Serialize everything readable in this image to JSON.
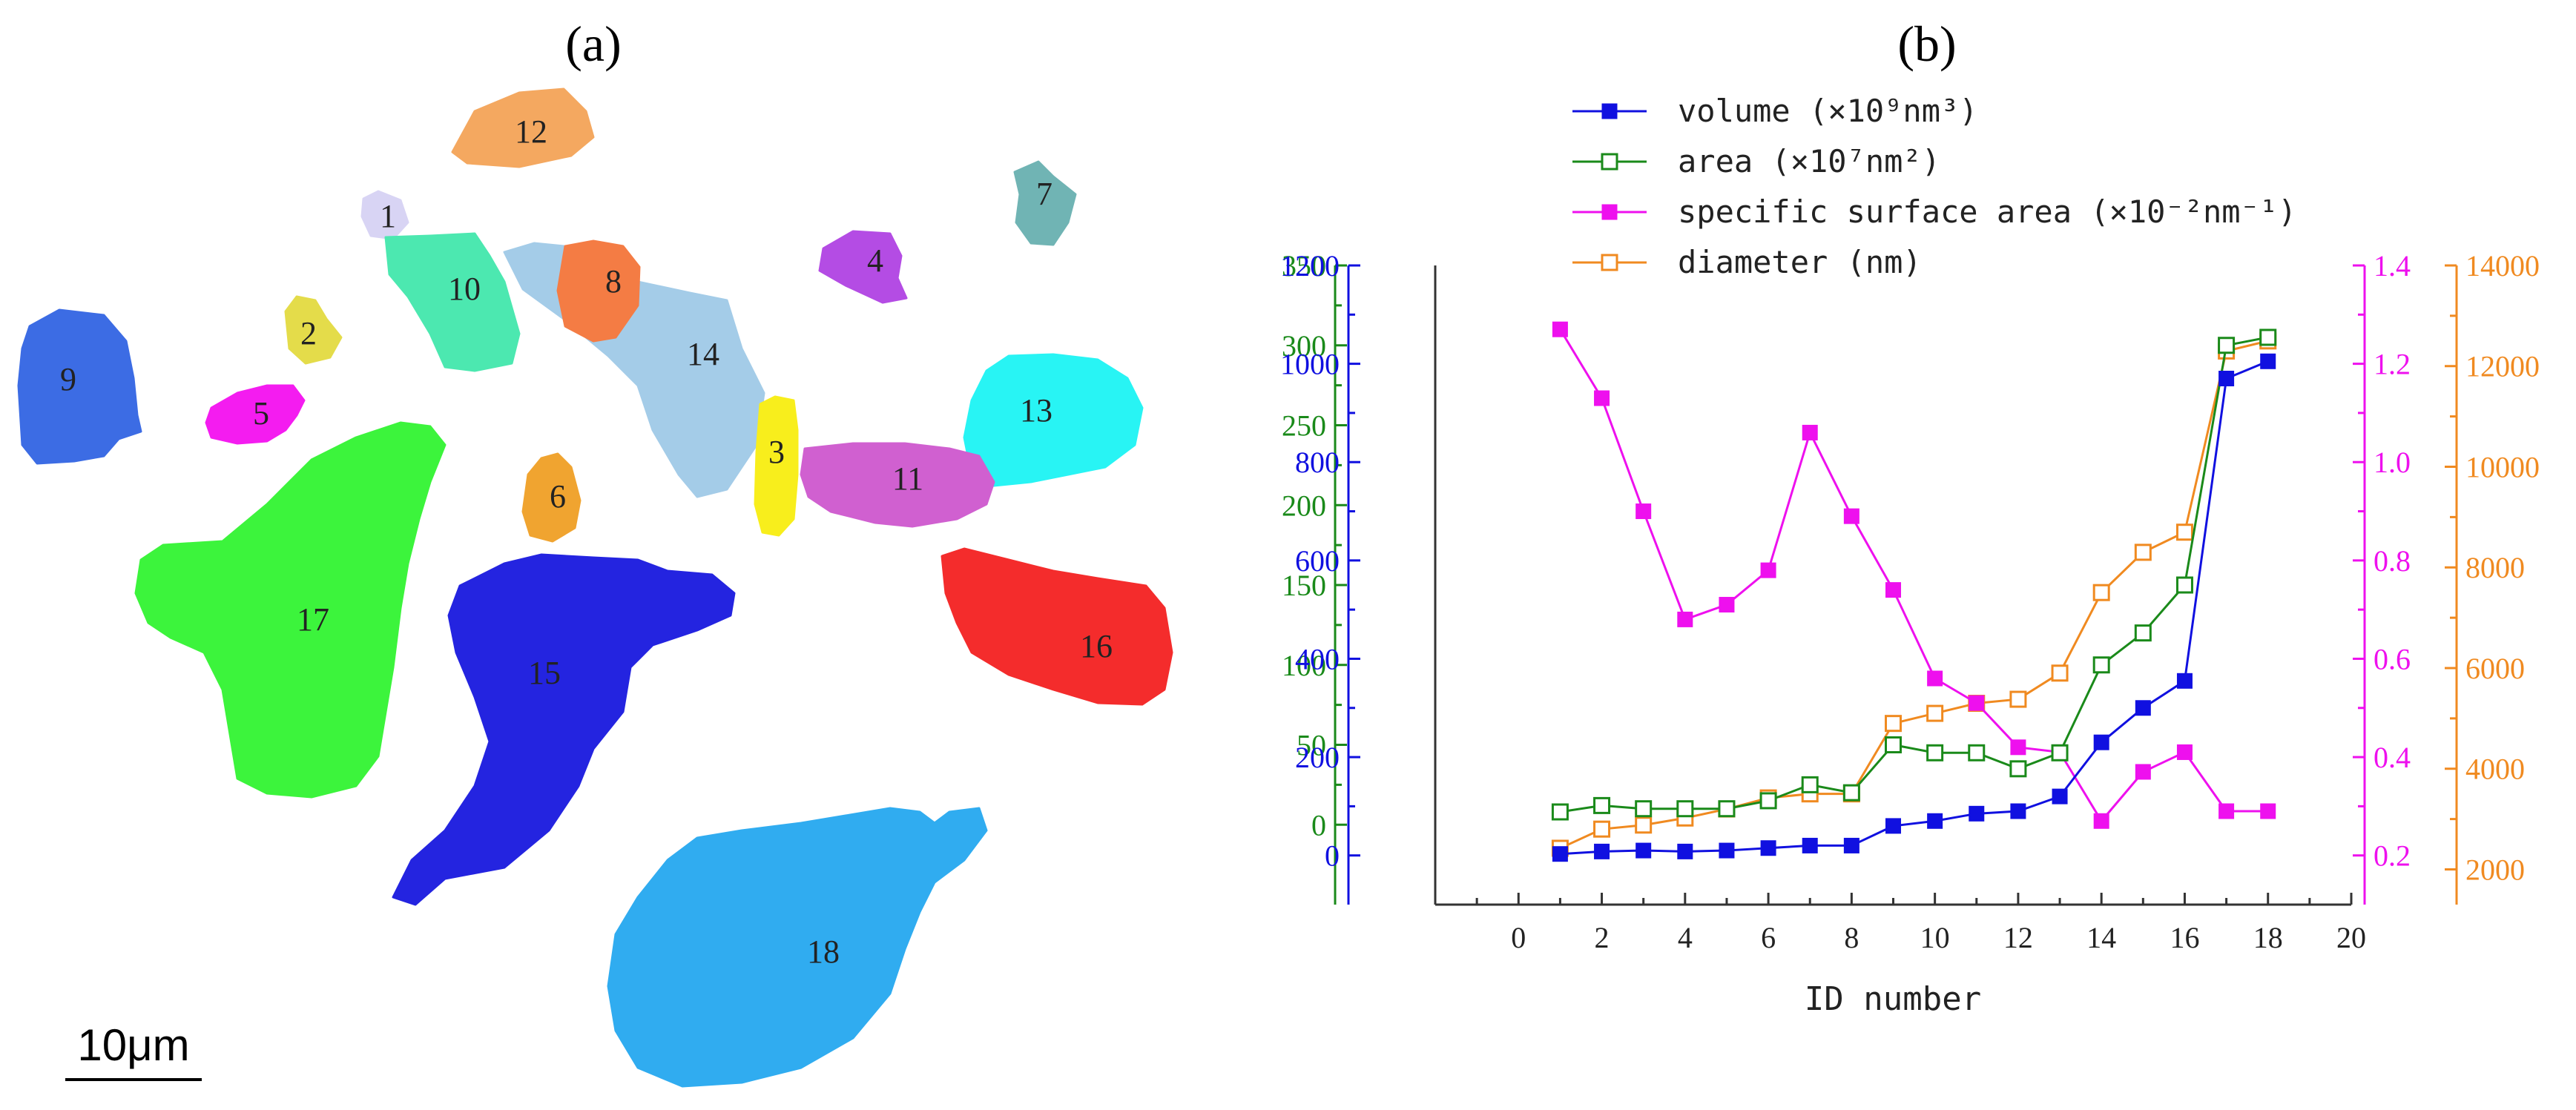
{
  "panel_a": {
    "label": "(a)",
    "scale_bar": "10μm",
    "particle_labels": [
      "1",
      "2",
      "3",
      "4",
      "5",
      "6",
      "7",
      "8",
      "9",
      "10",
      "11",
      "12",
      "13",
      "14",
      "15",
      "16",
      "17",
      "18"
    ],
    "particle_colors": [
      "#d8d4f4",
      "#e4dc4a",
      "#f8ee1c",
      "#b44ce4",
      "#f41cf0",
      "#f0a430",
      "#70b4b4",
      "#f47c44",
      "#3c6ce4",
      "#4ce8b0",
      "#d060d0",
      "#f4a860",
      "#28f4f4",
      "#a4cce8",
      "#2424e0",
      "#f42c2c",
      "#3cf43c",
      "#30acf0"
    ]
  },
  "panel_b": {
    "label": "(b)"
  },
  "chart_data": {
    "type": "line",
    "xlabel": "ID number",
    "xlim": [
      -2,
      20
    ],
    "x_ticks": [
      "0",
      "2",
      "4",
      "6",
      "8",
      "10",
      "12",
      "14",
      "16",
      "18",
      "20"
    ],
    "x": [
      1,
      2,
      3,
      4,
      5,
      6,
      7,
      8,
      9,
      10,
      11,
      12,
      13,
      14,
      15,
      16,
      17,
      18
    ],
    "legend_position": "top",
    "axes": [
      {
        "id": "area",
        "side": "left-outer",
        "color": "#1a8a1a",
        "ylim": [
          -50,
          350
        ],
        "ticks": [
          "0",
          "50",
          "100",
          "150",
          "200",
          "250",
          "300",
          "350"
        ]
      },
      {
        "id": "volume",
        "side": "left-inner",
        "color": "#1010e0",
        "ylim": [
          -100,
          1200
        ],
        "ticks": [
          "0",
          "200",
          "400",
          "600",
          "800",
          "1000",
          "1200"
        ]
      },
      {
        "id": "ssa",
        "side": "right-inner",
        "color": "#ee10ee",
        "ylim": [
          0.1,
          1.4
        ],
        "ticks": [
          "0.2",
          "0.4",
          "0.6",
          "0.8",
          "1.0",
          "1.2",
          "1.4"
        ]
      },
      {
        "id": "diameter",
        "side": "right-outer",
        "color": "#f08a20",
        "ylim": [
          1300,
          14000
        ],
        "ticks": [
          "2000",
          "4000",
          "6000",
          "8000",
          "10000",
          "12000",
          "14000"
        ]
      }
    ],
    "series": [
      {
        "name": "volume (×10⁹nm³)",
        "axis": "volume",
        "color": "#1010e0",
        "marker": "filled-square",
        "values": [
          3,
          8,
          10,
          8,
          10,
          15,
          20,
          20,
          60,
          70,
          85,
          90,
          120,
          230,
          300,
          355,
          970,
          1005
        ]
      },
      {
        "name": "area (×10⁷nm²)",
        "axis": "area",
        "color": "#1a8a1a",
        "marker": "open-square",
        "values": [
          8,
          12,
          10,
          10,
          10,
          15,
          25,
          20,
          50,
          45,
          45,
          35,
          45,
          100,
          120,
          150,
          300,
          305
        ]
      },
      {
        "name": "specific surface area (×10⁻²nm⁻¹)",
        "axis": "ssa",
        "color": "#ee10ee",
        "marker": "filled-square",
        "values": [
          1.27,
          1.13,
          0.9,
          0.68,
          0.71,
          0.78,
          1.06,
          0.89,
          0.74,
          0.56,
          0.51,
          0.42,
          0.41,
          0.27,
          0.37,
          0.41,
          0.29,
          0.29
        ]
      },
      {
        "name": "diameter (nm)",
        "axis": "diameter",
        "color": "#f08a20",
        "marker": "open-square",
        "values": [
          2420,
          2800,
          2880,
          3020,
          3200,
          3420,
          3500,
          3500,
          4900,
          5100,
          5300,
          5380,
          5900,
          7500,
          8300,
          8700,
          12300,
          12500
        ]
      }
    ]
  }
}
